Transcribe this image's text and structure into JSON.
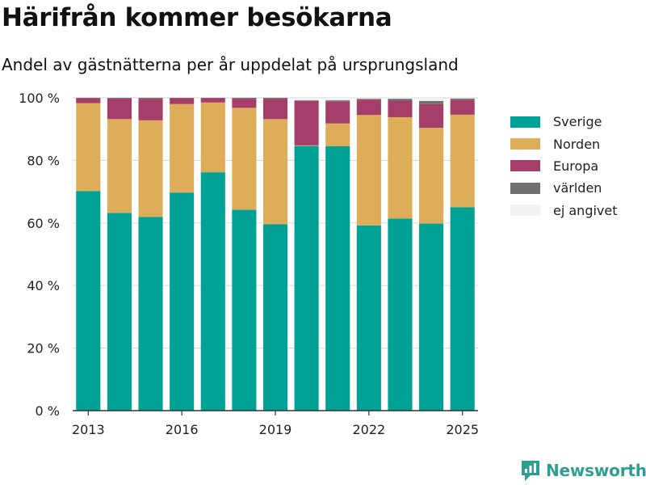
{
  "header": {
    "title": "Härifrån kommer besökarna",
    "subtitle": "Andel av gästnätterna per år uppdelat på ursprungsland"
  },
  "brand": {
    "name": "Newsworthy",
    "icon": "newsworthy-logo-icon",
    "color": "#2e9e92"
  },
  "chart_data": {
    "type": "bar",
    "stacked": true,
    "categories": [
      "2013",
      "2014",
      "2015",
      "2016",
      "2017",
      "2018",
      "2019",
      "2020",
      "2021",
      "2022",
      "2023",
      "2024",
      "2025"
    ],
    "x_tick_labels": [
      "2013",
      "2016",
      "2019",
      "2022",
      "2025"
    ],
    "y_ticks": [
      0,
      20,
      40,
      60,
      80,
      100
    ],
    "y_tick_labels": [
      "0 %",
      "20 %",
      "40 %",
      "60 %",
      "80 %",
      "100 %"
    ],
    "ylim": [
      0,
      100
    ],
    "grid": true,
    "legend_position": "right",
    "series": [
      {
        "name": "Sverige",
        "color": "#00a296",
        "values": [
          70.2,
          63.2,
          61.9,
          69.7,
          76.2,
          64.2,
          59.6,
          84.6,
          84.5,
          59.2,
          61.4,
          59.8,
          65.0
        ]
      },
      {
        "name": "Norden",
        "color": "#ddad5a",
        "values": [
          28.1,
          30.0,
          30.9,
          28.3,
          22.3,
          32.6,
          33.6,
          0.2,
          7.3,
          35.3,
          32.4,
          30.6,
          29.6
        ]
      },
      {
        "name": "Europa",
        "color": "#a63e6a",
        "values": [
          1.6,
          6.6,
          6.9,
          1.9,
          1.4,
          2.9,
          6.4,
          14.2,
          7.1,
          4.9,
          5.3,
          7.6,
          4.8
        ]
      },
      {
        "name": "världen",
        "color": "#707070",
        "values": [
          0.1,
          0.2,
          0.3,
          0.1,
          0.1,
          0.3,
          0.4,
          0.2,
          0.3,
          0.3,
          0.6,
          1.0,
          0.4
        ]
      },
      {
        "name": "ej angivet",
        "color": "#f2f2f2",
        "values": [
          0.0,
          0.0,
          0.0,
          0.0,
          0.0,
          0.0,
          0.0,
          0.8,
          0.8,
          0.3,
          0.3,
          1.0,
          0.2
        ]
      }
    ]
  }
}
